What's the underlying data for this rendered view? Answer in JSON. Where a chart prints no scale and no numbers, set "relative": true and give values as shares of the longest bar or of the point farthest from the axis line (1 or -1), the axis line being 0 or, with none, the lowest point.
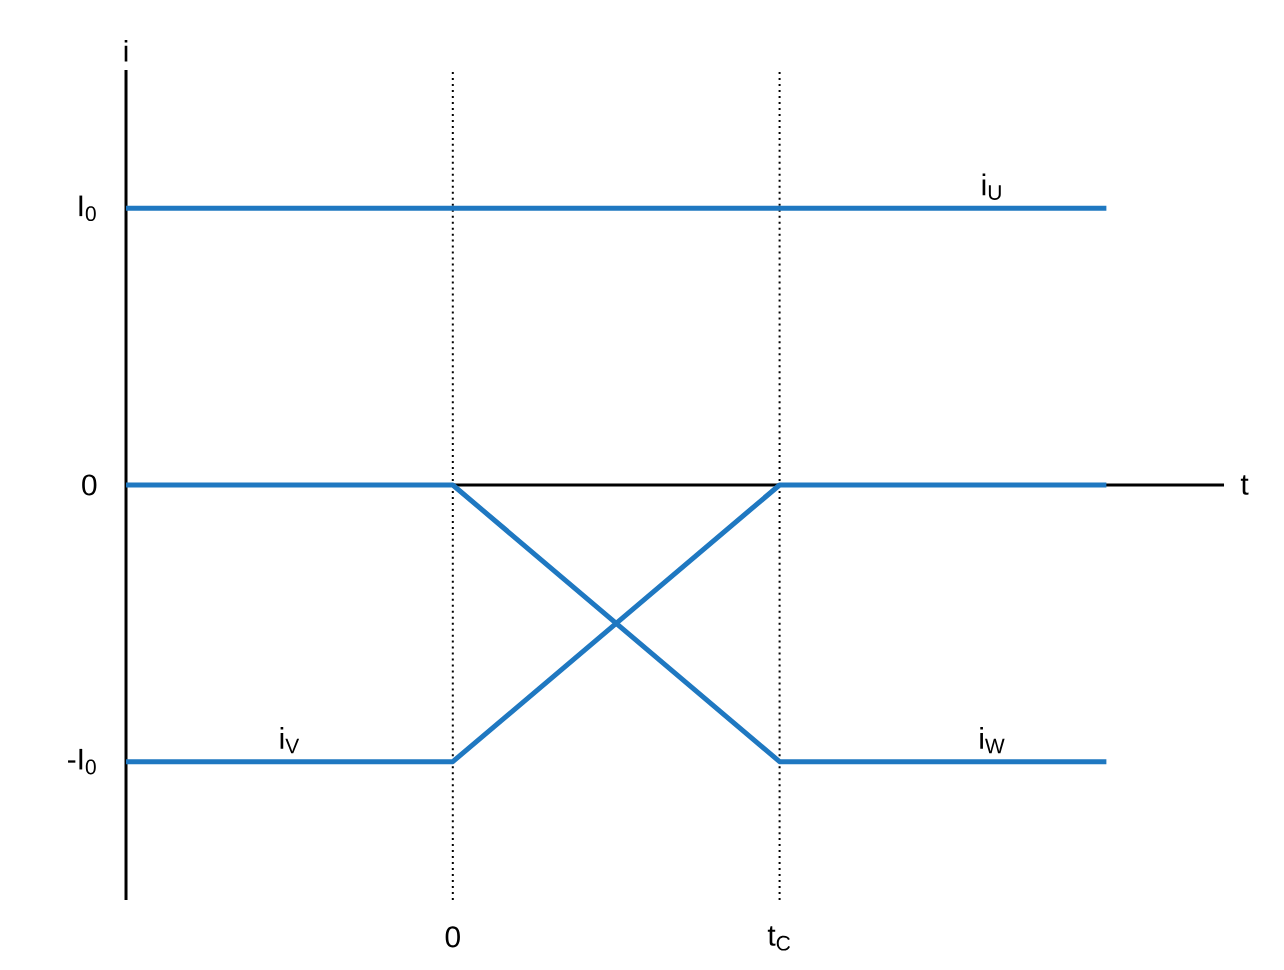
{
  "chart_data": {
    "type": "line",
    "xlabel": "t",
    "ylabel": "i",
    "relative": true,
    "categories": [
      null,
      "0",
      "t$_{C}$",
      null
    ],
    "series": [
      {
        "name": "i$_{U}$",
        "color": "#1f78c1",
        "values": [
          1,
          1,
          1,
          1
        ]
      },
      {
        "name": "i$_{V}$",
        "color": "#1f78c1",
        "values": [
          -1,
          -1,
          0,
          0
        ]
      },
      {
        "name": "i$_{W}$",
        "color": "#1f78c1",
        "values": [
          0,
          0,
          -1,
          -1
        ]
      }
    ],
    "ref_lines": [
      {
        "axis": "x",
        "value": "0",
        "color": "#000000",
        "line_style": "dotted"
      },
      {
        "axis": "x",
        "value": "t$_{C}$",
        "color": "#000000",
        "line_style": "dotted"
      }
    ],
    "annotations": [
      "I$_{0}$",
      "0",
      "-I$_{0}$"
    ],
    "grid": false,
    "legend": false,
    "marker": "none",
    "line_style": "solid"
  }
}
